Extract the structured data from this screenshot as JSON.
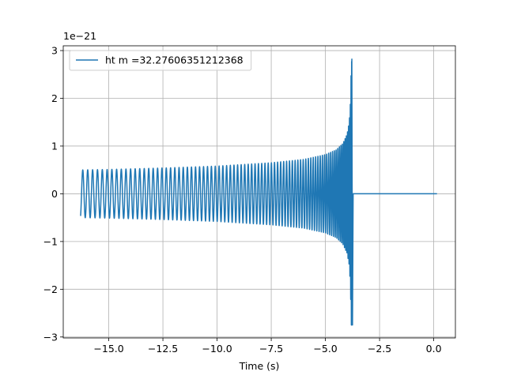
{
  "chart_data": {
    "type": "line",
    "title": "",
    "xlabel": "Time (s)",
    "ylabel": "",
    "y_offset_label": "1e−21",
    "xlim": [
      -17.1,
      1.0
    ],
    "ylim": [
      -3.02,
      3.1
    ],
    "x_ticks": [
      -15.0,
      -12.5,
      -10.0,
      -7.5,
      -5.0,
      -2.5,
      0.0
    ],
    "x_tick_labels": [
      "−15.0",
      "−12.5",
      "−10.0",
      "−7.5",
      "−5.0",
      "−2.5",
      "0.0"
    ],
    "y_ticks": [
      -3,
      -2,
      -1,
      0,
      1,
      2,
      3
    ],
    "y_tick_labels": [
      "−3",
      "−2",
      "−1",
      "0",
      "1",
      "2",
      "3"
    ],
    "grid": true,
    "legend_position": "top-left",
    "series": [
      {
        "name": "ht m =32.27606351212368",
        "color": "#1f77b4",
        "signal": {
          "kind": "chirp-waveform",
          "t_start": -16.3,
          "t_merger": -3.78,
          "t_end": 0.15,
          "amplitude_start": 0.5,
          "amplitude_peak": 2.82,
          "amplitude_min": -2.75,
          "post_merger_value": 0.0
        },
        "envelope": {
          "x": [
            -16.3,
            -15.0,
            -12.5,
            -10.0,
            -7.5,
            -6.0,
            -5.0,
            -4.5,
            -4.2,
            -4.0,
            -3.9,
            -3.85,
            -3.8
          ],
          "y": [
            0.5,
            0.51,
            0.54,
            0.58,
            0.65,
            0.72,
            0.82,
            0.92,
            1.05,
            1.25,
            1.5,
            1.9,
            2.82
          ]
        }
      }
    ]
  }
}
